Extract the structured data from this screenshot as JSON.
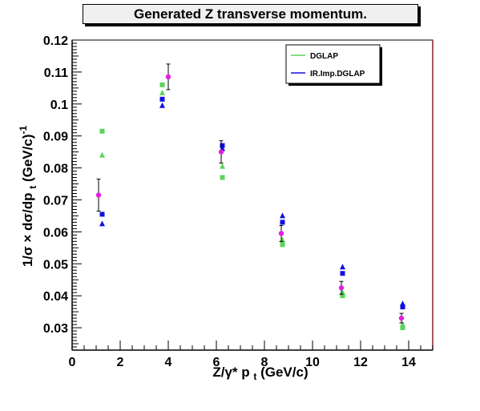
{
  "chart_data": {
    "type": "scatter",
    "title": "Generated Z transverse momentum.",
    "xlabel": "Z/γ* p",
    "xlabel_sub": "t",
    "xlabel_unit": "(GeV/c)",
    "ylabel": "1/σ × dσ/dp",
    "ylabel_sub": "t",
    "ylabel_unit": "(GeV/c)",
    "ylabel_sup": "-1",
    "xlim": [
      0,
      15
    ],
    "ylim": [
      0.023,
      0.12
    ],
    "xticks": [
      "0",
      "2",
      "4",
      "6",
      "8",
      "10",
      "12",
      "14"
    ],
    "yticks": [
      "0.03",
      "0.04",
      "0.05",
      "0.06",
      "0.07",
      "0.08",
      "0.09",
      "0.1",
      "0.11",
      "0.12"
    ],
    "legend_position": "top-right",
    "colors": {
      "dglap": "#5ad45a",
      "ir_imp": "#1010e0",
      "data": "#e020e0"
    },
    "legend": [
      {
        "label": "DGLAP",
        "color": "#5ad45a"
      },
      {
        "label": "IR.Imp.DGLAP",
        "color": "#1010e0"
      }
    ],
    "series": [
      {
        "name": "DGLAP",
        "marker": "square",
        "points": [
          [
            1.25,
            0.0915
          ],
          [
            3.75,
            0.106
          ],
          [
            6.25,
            0.077
          ],
          [
            8.75,
            0.056
          ],
          [
            11.25,
            0.04
          ],
          [
            13.75,
            0.03
          ]
        ]
      },
      {
        "name": "DGLAP",
        "marker": "triangle",
        "points": [
          [
            1.25,
            0.084
          ],
          [
            3.75,
            0.1035
          ],
          [
            6.25,
            0.0805
          ],
          [
            8.75,
            0.0575
          ],
          [
            11.25,
            0.041
          ],
          [
            13.75,
            0.031
          ]
        ]
      },
      {
        "name": "IR.Imp.DGLAP",
        "marker": "square",
        "points": [
          [
            1.25,
            0.0655
          ],
          [
            3.75,
            0.1015
          ],
          [
            6.25,
            0.087
          ],
          [
            8.75,
            0.063
          ],
          [
            11.25,
            0.047
          ],
          [
            13.75,
            0.0365
          ]
        ]
      },
      {
        "name": "IR.Imp.DGLAP",
        "marker": "triangle",
        "points": [
          [
            1.25,
            0.0625
          ],
          [
            3.75,
            0.0995
          ],
          [
            6.25,
            0.086
          ],
          [
            8.75,
            0.065
          ],
          [
            11.25,
            0.049
          ],
          [
            13.75,
            0.0375
          ]
        ]
      },
      {
        "name": "",
        "marker": "circle",
        "points": [
          [
            1.1,
            0.0715,
            0.005
          ],
          [
            4.0,
            0.1085,
            0.004
          ],
          [
            6.2,
            0.085,
            0.0035
          ],
          [
            8.7,
            0.0595,
            0.0025
          ],
          [
            11.2,
            0.0425,
            0.002
          ],
          [
            13.7,
            0.033,
            0.0015
          ]
        ]
      }
    ]
  }
}
